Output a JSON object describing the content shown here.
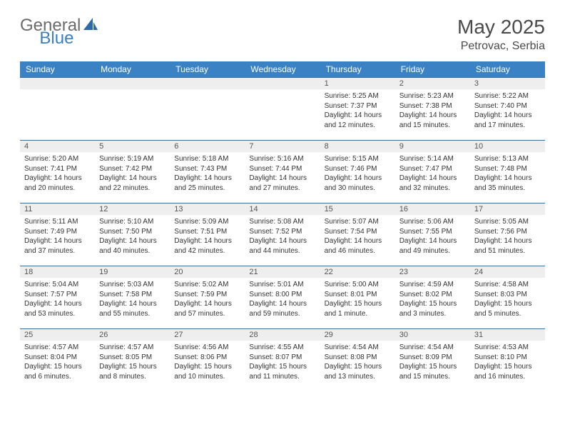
{
  "logo": {
    "part1": "General",
    "part2": "Blue"
  },
  "title": "May 2025",
  "location": "Petrovac, Serbia",
  "colors": {
    "header_bg": "#3b82c4",
    "header_text": "#ffffff",
    "daynum_bg": "#eeeeee",
    "cell_border": "#3b6fa3",
    "text": "#333333",
    "logo_gray": "#6b6b6b",
    "logo_blue": "#3b7fc4"
  },
  "weekdays": [
    "Sunday",
    "Monday",
    "Tuesday",
    "Wednesday",
    "Thursday",
    "Friday",
    "Saturday"
  ],
  "weeks": [
    [
      {
        "empty": true
      },
      {
        "empty": true
      },
      {
        "empty": true
      },
      {
        "empty": true
      },
      {
        "day": "1",
        "sunrise": "Sunrise: 5:25 AM",
        "sunset": "Sunset: 7:37 PM",
        "daylight1": "Daylight: 14 hours",
        "daylight2": "and 12 minutes."
      },
      {
        "day": "2",
        "sunrise": "Sunrise: 5:23 AM",
        "sunset": "Sunset: 7:38 PM",
        "daylight1": "Daylight: 14 hours",
        "daylight2": "and 15 minutes."
      },
      {
        "day": "3",
        "sunrise": "Sunrise: 5:22 AM",
        "sunset": "Sunset: 7:40 PM",
        "daylight1": "Daylight: 14 hours",
        "daylight2": "and 17 minutes."
      }
    ],
    [
      {
        "day": "4",
        "sunrise": "Sunrise: 5:20 AM",
        "sunset": "Sunset: 7:41 PM",
        "daylight1": "Daylight: 14 hours",
        "daylight2": "and 20 minutes."
      },
      {
        "day": "5",
        "sunrise": "Sunrise: 5:19 AM",
        "sunset": "Sunset: 7:42 PM",
        "daylight1": "Daylight: 14 hours",
        "daylight2": "and 22 minutes."
      },
      {
        "day": "6",
        "sunrise": "Sunrise: 5:18 AM",
        "sunset": "Sunset: 7:43 PM",
        "daylight1": "Daylight: 14 hours",
        "daylight2": "and 25 minutes."
      },
      {
        "day": "7",
        "sunrise": "Sunrise: 5:16 AM",
        "sunset": "Sunset: 7:44 PM",
        "daylight1": "Daylight: 14 hours",
        "daylight2": "and 27 minutes."
      },
      {
        "day": "8",
        "sunrise": "Sunrise: 5:15 AM",
        "sunset": "Sunset: 7:46 PM",
        "daylight1": "Daylight: 14 hours",
        "daylight2": "and 30 minutes."
      },
      {
        "day": "9",
        "sunrise": "Sunrise: 5:14 AM",
        "sunset": "Sunset: 7:47 PM",
        "daylight1": "Daylight: 14 hours",
        "daylight2": "and 32 minutes."
      },
      {
        "day": "10",
        "sunrise": "Sunrise: 5:13 AM",
        "sunset": "Sunset: 7:48 PM",
        "daylight1": "Daylight: 14 hours",
        "daylight2": "and 35 minutes."
      }
    ],
    [
      {
        "day": "11",
        "sunrise": "Sunrise: 5:11 AM",
        "sunset": "Sunset: 7:49 PM",
        "daylight1": "Daylight: 14 hours",
        "daylight2": "and 37 minutes."
      },
      {
        "day": "12",
        "sunrise": "Sunrise: 5:10 AM",
        "sunset": "Sunset: 7:50 PM",
        "daylight1": "Daylight: 14 hours",
        "daylight2": "and 40 minutes."
      },
      {
        "day": "13",
        "sunrise": "Sunrise: 5:09 AM",
        "sunset": "Sunset: 7:51 PM",
        "daylight1": "Daylight: 14 hours",
        "daylight2": "and 42 minutes."
      },
      {
        "day": "14",
        "sunrise": "Sunrise: 5:08 AM",
        "sunset": "Sunset: 7:52 PM",
        "daylight1": "Daylight: 14 hours",
        "daylight2": "and 44 minutes."
      },
      {
        "day": "15",
        "sunrise": "Sunrise: 5:07 AM",
        "sunset": "Sunset: 7:54 PM",
        "daylight1": "Daylight: 14 hours",
        "daylight2": "and 46 minutes."
      },
      {
        "day": "16",
        "sunrise": "Sunrise: 5:06 AM",
        "sunset": "Sunset: 7:55 PM",
        "daylight1": "Daylight: 14 hours",
        "daylight2": "and 49 minutes."
      },
      {
        "day": "17",
        "sunrise": "Sunrise: 5:05 AM",
        "sunset": "Sunset: 7:56 PM",
        "daylight1": "Daylight: 14 hours",
        "daylight2": "and 51 minutes."
      }
    ],
    [
      {
        "day": "18",
        "sunrise": "Sunrise: 5:04 AM",
        "sunset": "Sunset: 7:57 PM",
        "daylight1": "Daylight: 14 hours",
        "daylight2": "and 53 minutes."
      },
      {
        "day": "19",
        "sunrise": "Sunrise: 5:03 AM",
        "sunset": "Sunset: 7:58 PM",
        "daylight1": "Daylight: 14 hours",
        "daylight2": "and 55 minutes."
      },
      {
        "day": "20",
        "sunrise": "Sunrise: 5:02 AM",
        "sunset": "Sunset: 7:59 PM",
        "daylight1": "Daylight: 14 hours",
        "daylight2": "and 57 minutes."
      },
      {
        "day": "21",
        "sunrise": "Sunrise: 5:01 AM",
        "sunset": "Sunset: 8:00 PM",
        "daylight1": "Daylight: 14 hours",
        "daylight2": "and 59 minutes."
      },
      {
        "day": "22",
        "sunrise": "Sunrise: 5:00 AM",
        "sunset": "Sunset: 8:01 PM",
        "daylight1": "Daylight: 15 hours",
        "daylight2": "and 1 minute."
      },
      {
        "day": "23",
        "sunrise": "Sunrise: 4:59 AM",
        "sunset": "Sunset: 8:02 PM",
        "daylight1": "Daylight: 15 hours",
        "daylight2": "and 3 minutes."
      },
      {
        "day": "24",
        "sunrise": "Sunrise: 4:58 AM",
        "sunset": "Sunset: 8:03 PM",
        "daylight1": "Daylight: 15 hours",
        "daylight2": "and 5 minutes."
      }
    ],
    [
      {
        "day": "25",
        "sunrise": "Sunrise: 4:57 AM",
        "sunset": "Sunset: 8:04 PM",
        "daylight1": "Daylight: 15 hours",
        "daylight2": "and 6 minutes."
      },
      {
        "day": "26",
        "sunrise": "Sunrise: 4:57 AM",
        "sunset": "Sunset: 8:05 PM",
        "daylight1": "Daylight: 15 hours",
        "daylight2": "and 8 minutes."
      },
      {
        "day": "27",
        "sunrise": "Sunrise: 4:56 AM",
        "sunset": "Sunset: 8:06 PM",
        "daylight1": "Daylight: 15 hours",
        "daylight2": "and 10 minutes."
      },
      {
        "day": "28",
        "sunrise": "Sunrise: 4:55 AM",
        "sunset": "Sunset: 8:07 PM",
        "daylight1": "Daylight: 15 hours",
        "daylight2": "and 11 minutes."
      },
      {
        "day": "29",
        "sunrise": "Sunrise: 4:54 AM",
        "sunset": "Sunset: 8:08 PM",
        "daylight1": "Daylight: 15 hours",
        "daylight2": "and 13 minutes."
      },
      {
        "day": "30",
        "sunrise": "Sunrise: 4:54 AM",
        "sunset": "Sunset: 8:09 PM",
        "daylight1": "Daylight: 15 hours",
        "daylight2": "and 15 minutes."
      },
      {
        "day": "31",
        "sunrise": "Sunrise: 4:53 AM",
        "sunset": "Sunset: 8:10 PM",
        "daylight1": "Daylight: 15 hours",
        "daylight2": "and 16 minutes."
      }
    ]
  ]
}
